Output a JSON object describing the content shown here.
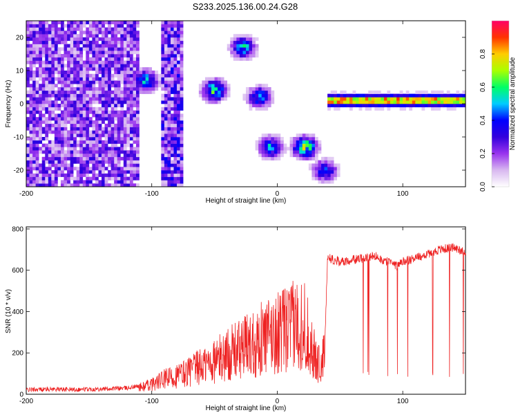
{
  "figure": {
    "title": "S233.2025.136.00.24.G28"
  },
  "chart_data": [
    {
      "type": "heatmap",
      "xlabel": "Height of straight line (km)",
      "ylabel": "Frequency (Hz)",
      "xlim": [
        -200,
        150
      ],
      "ylim": [
        -25,
        25
      ],
      "xticks": [
        -200,
        -100,
        0,
        100
      ],
      "yticks": [
        -20,
        -10,
        0,
        10,
        20
      ],
      "grid": false,
      "colorbar": {
        "label": "Normalized spectral amplitude",
        "range": [
          0,
          1
        ],
        "ticks": [
          0.0,
          0.2,
          0.4,
          0.6,
          0.8
        ],
        "colors": [
          "#ffffff",
          "#d8b8f0",
          "#9933ee",
          "#3300dd",
          "#0000ff",
          "#00ccff",
          "#00ff66",
          "#aaff00",
          "#ffcc00",
          "#ff3300",
          "#ff0066"
        ]
      },
      "features": [
        {
          "name": "broadband noise",
          "x_range": [
            -200,
            -110
          ],
          "y_range": [
            -25,
            25
          ],
          "amplitude": 0.25
        },
        {
          "name": "column",
          "x_range": [
            -92,
            -76
          ],
          "y_range": [
            -25,
            25
          ],
          "amplitude": 0.3
        },
        {
          "name": "blob",
          "x_center": -105,
          "y_center": 7,
          "amplitude": 0.5
        },
        {
          "name": "blob",
          "x_center": -50,
          "y_center": 4,
          "amplitude": 0.55
        },
        {
          "name": "blob",
          "x_center": -27,
          "y_center": 17,
          "amplitude": 0.5
        },
        {
          "name": "blob",
          "x_center": -14,
          "y_center": 2,
          "amplitude": 0.45
        },
        {
          "name": "blob",
          "x_center": -5,
          "y_center": -13,
          "amplitude": 0.45
        },
        {
          "name": "blob",
          "x_center": 22,
          "y_center": -13,
          "amplitude": 0.65
        },
        {
          "name": "blob",
          "x_center": 38,
          "y_center": -20,
          "amplitude": 0.4
        },
        {
          "name": "ridge",
          "x_range": [
            40,
            150
          ],
          "y_value": 1,
          "amplitude": 0.95
        }
      ]
    },
    {
      "type": "line",
      "xlabel": "Height of straight line (km)",
      "ylabel": "SNR (10 * v/v)",
      "xlim": [
        -200,
        150
      ],
      "ylim": [
        0,
        810
      ],
      "xticks": [
        -200,
        -100,
        0,
        100
      ],
      "yticks": [
        0,
        200,
        400,
        600,
        800
      ],
      "grid": false,
      "series": [
        {
          "color": "#ee2222",
          "points": [
            [
              -200,
              22
            ],
            [
              -180,
              25
            ],
            [
              -160,
              23
            ],
            [
              -140,
              26
            ],
            [
              -120,
              30
            ],
            [
              -110,
              40
            ],
            [
              -100,
              60
            ],
            [
              -90,
              90
            ],
            [
              -80,
              110
            ],
            [
              -70,
              140
            ],
            [
              -60,
              170
            ],
            [
              -50,
              200
            ],
            [
              -40,
              240
            ],
            [
              -30,
              270
            ],
            [
              -20,
              310
            ],
            [
              -10,
              340
            ],
            [
              0,
              370
            ],
            [
              10,
              400
            ],
            [
              15,
              420
            ],
            [
              20,
              440
            ],
            [
              25,
              350
            ],
            [
              30,
              220
            ],
            [
              35,
              170
            ],
            [
              38,
              250
            ],
            [
              40,
              660
            ],
            [
              50,
              640
            ],
            [
              60,
              650
            ],
            [
              70,
              660
            ],
            [
              80,
              670
            ],
            [
              85,
              640
            ],
            [
              90,
              650
            ],
            [
              95,
              620
            ],
            [
              100,
              640
            ],
            [
              110,
              660
            ],
            [
              120,
              680
            ],
            [
              130,
              700
            ],
            [
              140,
              710
            ],
            [
              150,
              690
            ]
          ]
        }
      ]
    }
  ]
}
